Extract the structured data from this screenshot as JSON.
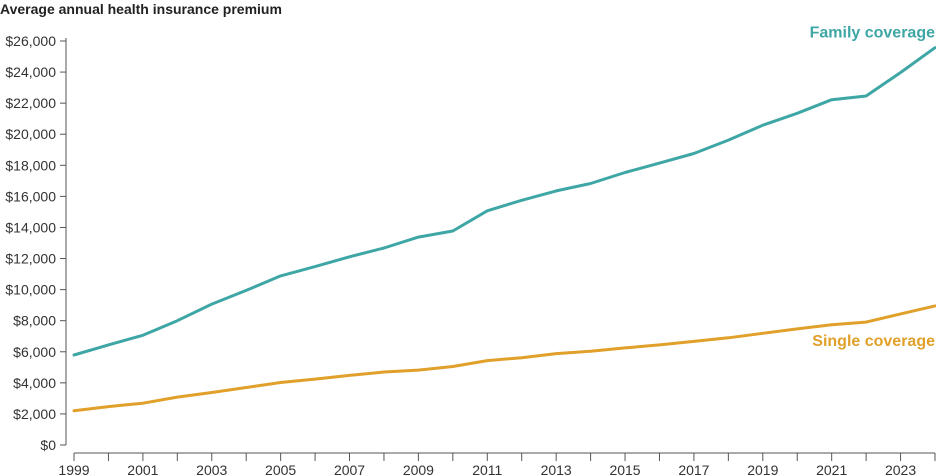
{
  "chart_data": {
    "type": "line",
    "title": "Average annual health insurance premium",
    "xlabel": "",
    "ylabel": "",
    "x": [
      1999,
      2000,
      2001,
      2002,
      2003,
      2004,
      2005,
      2006,
      2007,
      2008,
      2009,
      2010,
      2011,
      2012,
      2013,
      2014,
      2015,
      2016,
      2017,
      2018,
      2019,
      2020,
      2021,
      2022,
      2023,
      2024
    ],
    "x_tick_labels": [
      "1999",
      "2001",
      "2003",
      "2005",
      "2007",
      "2009",
      "2011",
      "2013",
      "2015",
      "2017",
      "2019",
      "2021",
      "2023"
    ],
    "ylim": [
      0,
      26000
    ],
    "y_tick_labels": [
      "$0",
      "$2,000",
      "$4,000",
      "$6,000",
      "$8,000",
      "$10,000",
      "$12,000",
      "$14,000",
      "$16,000",
      "$18,000",
      "$20,000",
      "$22,000",
      "$24,000",
      "$26,000"
    ],
    "grid": false,
    "series": [
      {
        "name": "Family coverage",
        "color": "#3fa6a6",
        "values": [
          5790,
          6440,
          7060,
          8000,
          9070,
          9950,
          10880,
          11480,
          12110,
          12680,
          13380,
          13770,
          15070,
          15750,
          16350,
          16830,
          17540,
          18140,
          18760,
          19620,
          20580,
          21350,
          22220,
          22460,
          23970,
          25570
        ]
      },
      {
        "name": "Single coverage",
        "color": "#e0a02a",
        "values": [
          2200,
          2470,
          2690,
          3080,
          3380,
          3700,
          4020,
          4240,
          4480,
          4700,
          4820,
          5050,
          5430,
          5620,
          5880,
          6030,
          6250,
          6440,
          6670,
          6900,
          7190,
          7470,
          7740,
          7910,
          8440,
          8950
        ]
      }
    ]
  }
}
